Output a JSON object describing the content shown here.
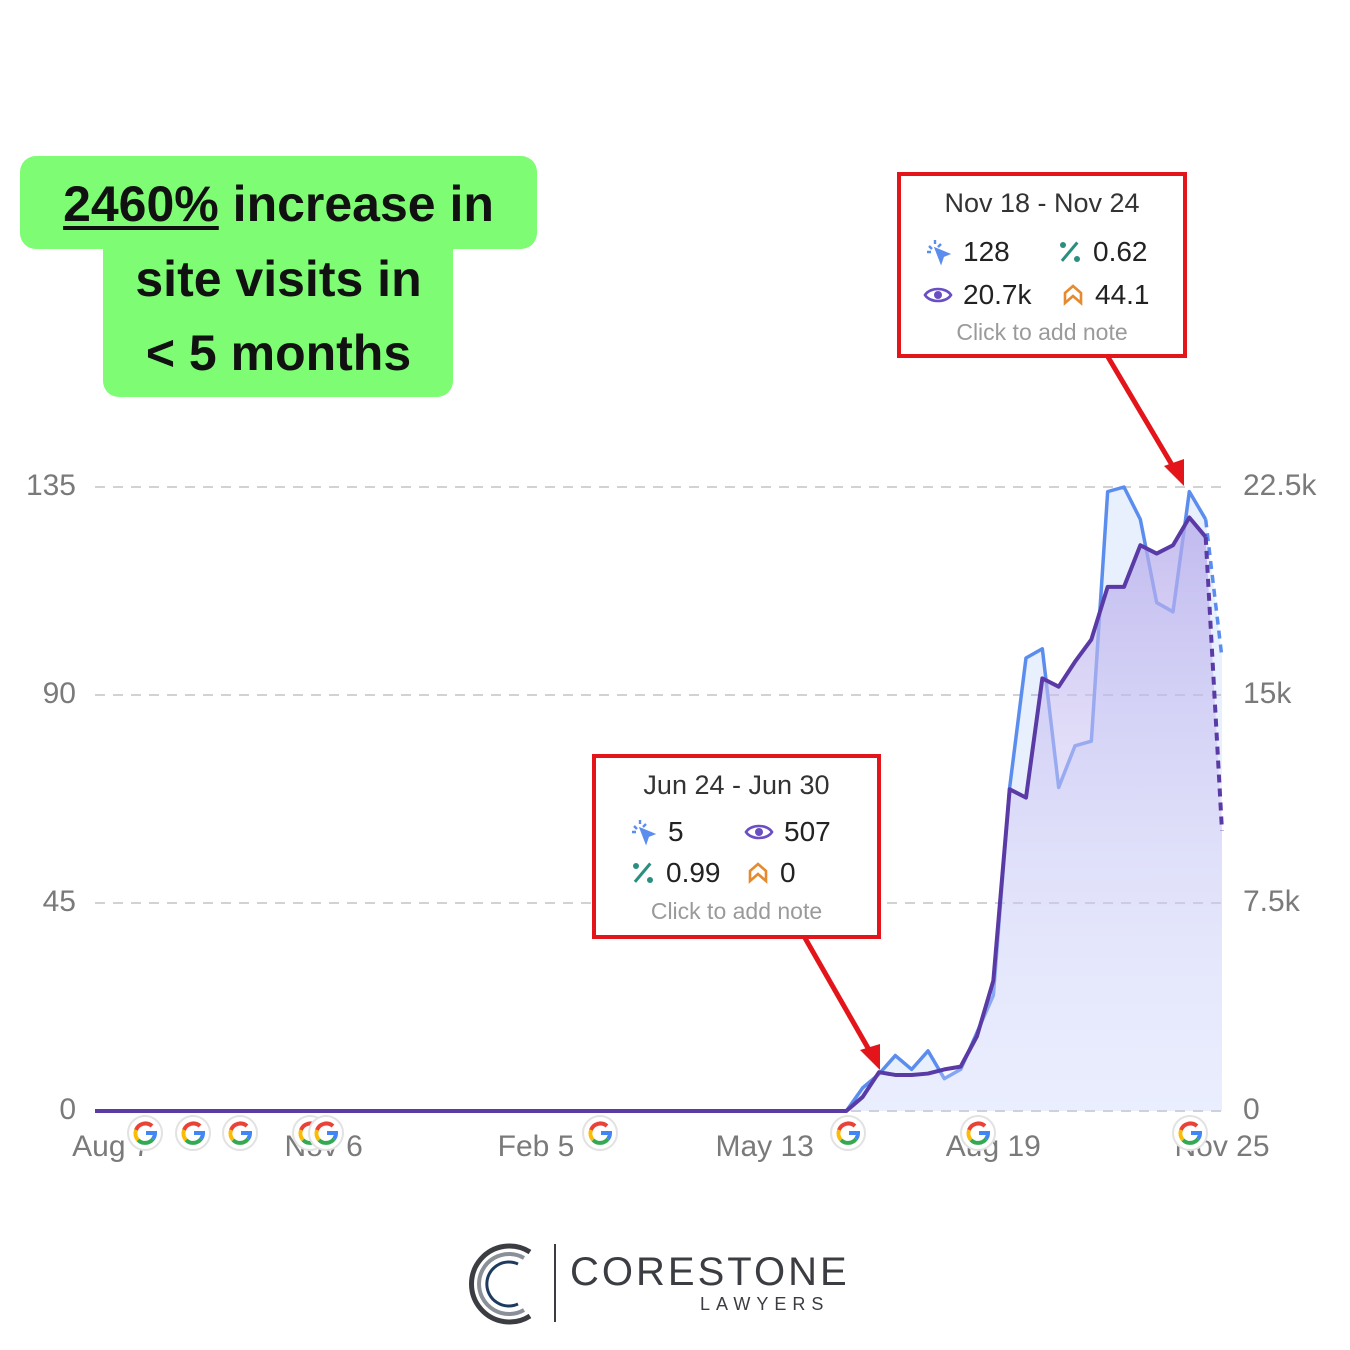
{
  "headline": {
    "highlight": "2460%",
    "lines": [
      "increase in",
      "site visits in",
      "< 5 months"
    ]
  },
  "tooltips": [
    {
      "title": "Jun 24 - Jun 30",
      "clicks": 5,
      "impressions": 507,
      "ctr": 0.99,
      "position": 0,
      "note": "Click to add note"
    },
    {
      "title": "Nov 18 - Nov 24",
      "clicks": 128,
      "ctr": 0.62,
      "impressions": {
        "value": 20700,
        "label": "20.7k"
      },
      "position": 44.1,
      "note": "Click to add note"
    }
  ],
  "logo": {
    "name": "CORESTONE",
    "tagline": "LAWYERS"
  },
  "chart_data": {
    "type": "line",
    "categories": [
      null,
      "Aug 7",
      null,
      null,
      null,
      null,
      null,
      null,
      null,
      null,
      null,
      null,
      null,
      null,
      "Nov 6",
      null,
      null,
      null,
      null,
      null,
      null,
      null,
      null,
      null,
      null,
      null,
      null,
      "Feb 5",
      null,
      null,
      null,
      null,
      null,
      null,
      null,
      null,
      null,
      null,
      null,
      null,
      null,
      "May 13",
      null,
      null,
      null,
      null,
      null,
      null,
      null,
      null,
      null,
      null,
      null,
      null,
      null,
      "Aug 19",
      null,
      null,
      null,
      null,
      null,
      null,
      null,
      null,
      null,
      null,
      null,
      null,
      null,
      "Nov 25"
    ],
    "series": [
      {
        "color": "#5b8def",
        "values": [
          0,
          0,
          0,
          0,
          0,
          0,
          0,
          0,
          0,
          0,
          0,
          0,
          0,
          0,
          0,
          0,
          0,
          0,
          0,
          0,
          0,
          0,
          0,
          0,
          0,
          0,
          0,
          0,
          0,
          0,
          0,
          0,
          0,
          0,
          0,
          0,
          0,
          0,
          0,
          0,
          0,
          0,
          0,
          0,
          0,
          0,
          0,
          5,
          8,
          12,
          9,
          13,
          7,
          9,
          17,
          25,
          70,
          98,
          100,
          70,
          79,
          80,
          134,
          135,
          128,
          110,
          108,
          134,
          128,
          98
        ]
      },
      {
        "color": "#5a3ba6",
        "axis": "y2",
        "values": [
          0,
          0,
          0,
          0,
          0,
          0,
          0,
          0,
          0,
          0,
          0,
          0,
          0,
          0,
          0,
          0,
          0,
          0,
          0,
          0,
          0,
          0,
          0,
          0,
          0,
          0,
          0,
          0,
          0,
          0,
          0,
          0,
          0,
          0,
          0,
          0,
          0,
          0,
          0,
          0,
          0,
          0,
          0,
          0,
          0,
          0,
          0,
          507,
          1400,
          1300,
          1300,
          1350,
          1500,
          1600,
          2700,
          4700,
          11600,
          11300,
          15600,
          15300,
          16200,
          17000,
          18900,
          18900,
          20400,
          20100,
          20400,
          21400,
          20700,
          10100
        ]
      }
    ],
    "ylim": [
      0,
      135
    ],
    "yticks": [
      0,
      45,
      90,
      135
    ],
    "y2lim": [
      0,
      22500
    ],
    "y2ticks": [
      0,
      {
        "value": 7500,
        "label": "7.5k"
      },
      {
        "value": 15000,
        "label": "15k"
      },
      {
        "value": 22500,
        "label": "22.5k"
      }
    ],
    "grid": true,
    "dashed_last_segment": true
  }
}
